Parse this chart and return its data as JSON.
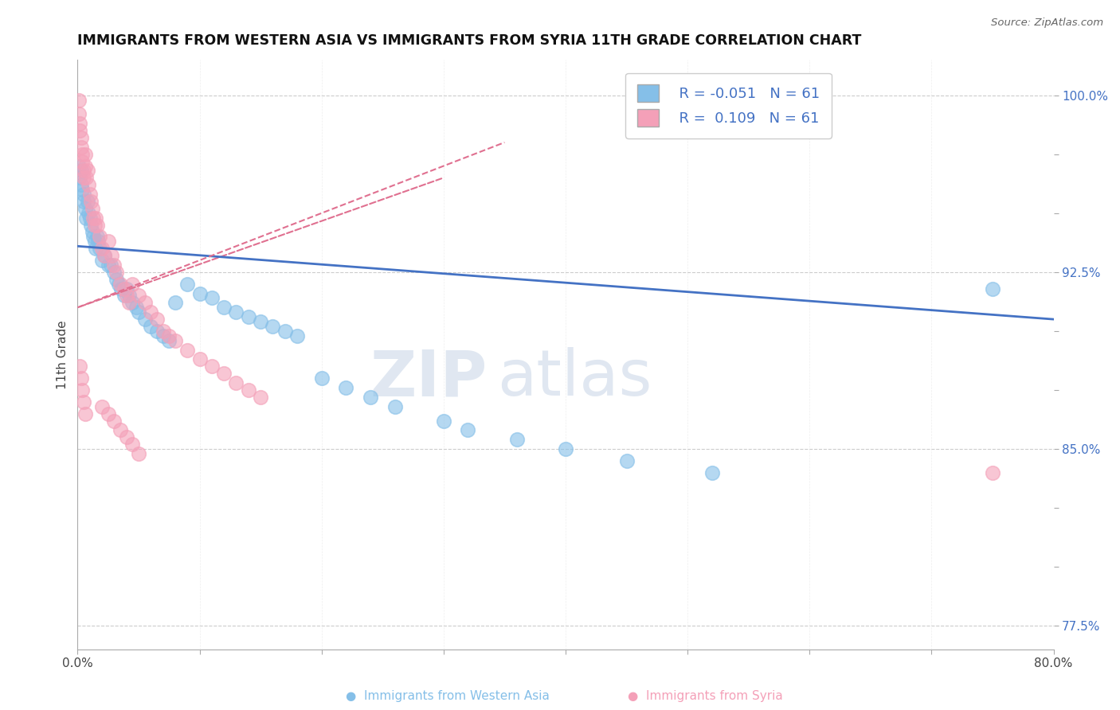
{
  "title": "IMMIGRANTS FROM WESTERN ASIA VS IMMIGRANTS FROM SYRIA 11TH GRADE CORRELATION CHART",
  "source": "Source: ZipAtlas.com",
  "ylabel": "11th Grade",
  "xlim": [
    0.0,
    0.8
  ],
  "ylim": [
    0.765,
    1.015
  ],
  "xticks": [
    0.0,
    0.1,
    0.2,
    0.3,
    0.4,
    0.5,
    0.6,
    0.7,
    0.8
  ],
  "xticklabels": [
    "0.0%",
    "",
    "",
    "",
    "",
    "",
    "",
    "",
    "80.0%"
  ],
  "ytick_vals": [
    0.775,
    0.8,
    0.825,
    0.85,
    0.875,
    0.9,
    0.925,
    0.95,
    0.975,
    1.0
  ],
  "ytick_labels": [
    "77.5%",
    "",
    "",
    "85.0%",
    "",
    "",
    "92.5%",
    "",
    "",
    "100.0%"
  ],
  "blue_R": "-0.051",
  "blue_N": "61",
  "pink_R": "0.109",
  "pink_N": "61",
  "blue_color": "#85bfe8",
  "pink_color": "#f4a0b8",
  "blue_trend_color": "#4472c4",
  "pink_trend_color": "#e07090",
  "watermark1": "ZIP",
  "watermark2": "atlas",
  "blue_x": [
    0.001,
    0.002,
    0.003,
    0.003,
    0.004,
    0.005,
    0.005,
    0.006,
    0.007,
    0.008,
    0.009,
    0.01,
    0.011,
    0.012,
    0.013,
    0.014,
    0.015,
    0.016,
    0.017,
    0.018,
    0.02,
    0.022,
    0.025,
    0.027,
    0.03,
    0.032,
    0.034,
    0.036,
    0.038,
    0.04,
    0.042,
    0.045,
    0.048,
    0.05,
    0.055,
    0.06,
    0.065,
    0.07,
    0.075,
    0.08,
    0.09,
    0.1,
    0.11,
    0.12,
    0.13,
    0.14,
    0.15,
    0.16,
    0.17,
    0.18,
    0.2,
    0.22,
    0.24,
    0.26,
    0.3,
    0.32,
    0.36,
    0.4,
    0.45,
    0.52,
    0.75
  ],
  "blue_y": [
    0.97,
    0.965,
    0.968,
    0.962,
    0.96,
    0.958,
    0.955,
    0.952,
    0.948,
    0.955,
    0.95,
    0.948,
    0.945,
    0.942,
    0.94,
    0.938,
    0.935,
    0.94,
    0.938,
    0.935,
    0.93,
    0.932,
    0.928,
    0.928,
    0.925,
    0.922,
    0.92,
    0.918,
    0.915,
    0.918,
    0.915,
    0.912,
    0.91,
    0.908,
    0.905,
    0.902,
    0.9,
    0.898,
    0.896,
    0.912,
    0.92,
    0.916,
    0.914,
    0.91,
    0.908,
    0.906,
    0.904,
    0.902,
    0.9,
    0.898,
    0.88,
    0.876,
    0.872,
    0.868,
    0.862,
    0.858,
    0.854,
    0.85,
    0.845,
    0.84,
    0.918
  ],
  "pink_x": [
    0.001,
    0.001,
    0.002,
    0.002,
    0.003,
    0.003,
    0.004,
    0.004,
    0.005,
    0.005,
    0.006,
    0.006,
    0.007,
    0.008,
    0.009,
    0.01,
    0.011,
    0.012,
    0.013,
    0.014,
    0.015,
    0.016,
    0.018,
    0.02,
    0.022,
    0.025,
    0.028,
    0.03,
    0.032,
    0.035,
    0.038,
    0.04,
    0.042,
    0.045,
    0.05,
    0.055,
    0.06,
    0.065,
    0.07,
    0.075,
    0.08,
    0.09,
    0.1,
    0.11,
    0.12,
    0.13,
    0.14,
    0.15,
    0.02,
    0.025,
    0.03,
    0.035,
    0.04,
    0.045,
    0.05,
    0.002,
    0.003,
    0.004,
    0.005,
    0.006,
    0.75
  ],
  "pink_y": [
    0.998,
    0.992,
    0.988,
    0.985,
    0.982,
    0.978,
    0.975,
    0.972,
    0.968,
    0.965,
    0.975,
    0.97,
    0.965,
    0.968,
    0.962,
    0.958,
    0.955,
    0.952,
    0.948,
    0.945,
    0.948,
    0.945,
    0.94,
    0.935,
    0.932,
    0.938,
    0.932,
    0.928,
    0.925,
    0.92,
    0.918,
    0.915,
    0.912,
    0.92,
    0.915,
    0.912,
    0.908,
    0.905,
    0.9,
    0.898,
    0.896,
    0.892,
    0.888,
    0.885,
    0.882,
    0.878,
    0.875,
    0.872,
    0.868,
    0.865,
    0.862,
    0.858,
    0.855,
    0.852,
    0.848,
    0.885,
    0.88,
    0.875,
    0.87,
    0.865,
    0.84
  ]
}
